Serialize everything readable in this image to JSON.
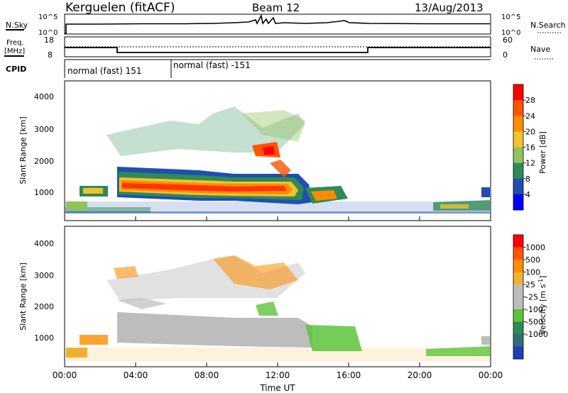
{
  "header": {
    "station": "Kerguelen (fitACF)",
    "beam": "Beam 12",
    "date": "13/Aug/2013"
  },
  "top_panels": {
    "nsky_label": "N.Sky",
    "nsky_ticks": [
      "10^5",
      "10^0"
    ],
    "nsearch_label": "N.Search",
    "nsearch_ticks": [
      "10^5",
      "10^0"
    ],
    "freq_label_1": "Freq.",
    "freq_label_2": "[MHz]",
    "freq_ticks": [
      "18",
      "8"
    ],
    "nave_label": "Nave",
    "nave_ticks": [
      "60",
      "0"
    ],
    "cpid_label": "CPID",
    "cpid_segments": [
      {
        "label": "normal (fast) 151",
        "start_hour": 0
      },
      {
        "label": "normal (fast) -151",
        "start_hour": 6
      }
    ]
  },
  "chart_data": [
    {
      "type": "heatmap",
      "name": "power",
      "ylabel": "Slant Range [km]",
      "xlabel": "",
      "yticks": [
        "1000",
        "2000",
        "3000",
        "4000"
      ],
      "ylim": [
        250,
        4550
      ],
      "xlim_hours": [
        0,
        24
      ],
      "colorbar_label": "Power [dB]",
      "colorbar_ticks": [
        "4",
        "8",
        "12",
        "16",
        "20",
        "24",
        "28"
      ],
      "colorbar_colors": [
        "#0000ff",
        "#1f4fb0",
        "#2e8b57",
        "#8fc45a",
        "#f2c230",
        "#ff8c00",
        "#ff5500",
        "#ff0000"
      ]
    },
    {
      "type": "heatmap",
      "name": "velocity",
      "ylabel": "Slant Range [km]",
      "xlabel": "Time UT",
      "yticks": [
        "1000",
        "2000",
        "3000",
        "4000"
      ],
      "ylim": [
        250,
        4550
      ],
      "xlim_hours": [
        0,
        24
      ],
      "xticks": [
        "00:00",
        "04:00",
        "08:00",
        "12:00",
        "16:00",
        "20:00",
        "00:00"
      ],
      "colorbar_label": "Velocity [m s",
      "colorbar_label_sup": "-1",
      "colorbar_label_end": "]",
      "colorbar_ticks": [
        "1000",
        "500",
        "100",
        "25",
        "-25",
        "-100",
        "-500",
        "-1000"
      ],
      "colorbar_colors": [
        "#1f3fb8",
        "#2e6f7a",
        "#2e8b57",
        "#5cc43a",
        "#bdbdbd",
        "#bdbdbd",
        "#f2b030",
        "#ff8c00",
        "#ff5500",
        "#ff0000"
      ]
    }
  ]
}
